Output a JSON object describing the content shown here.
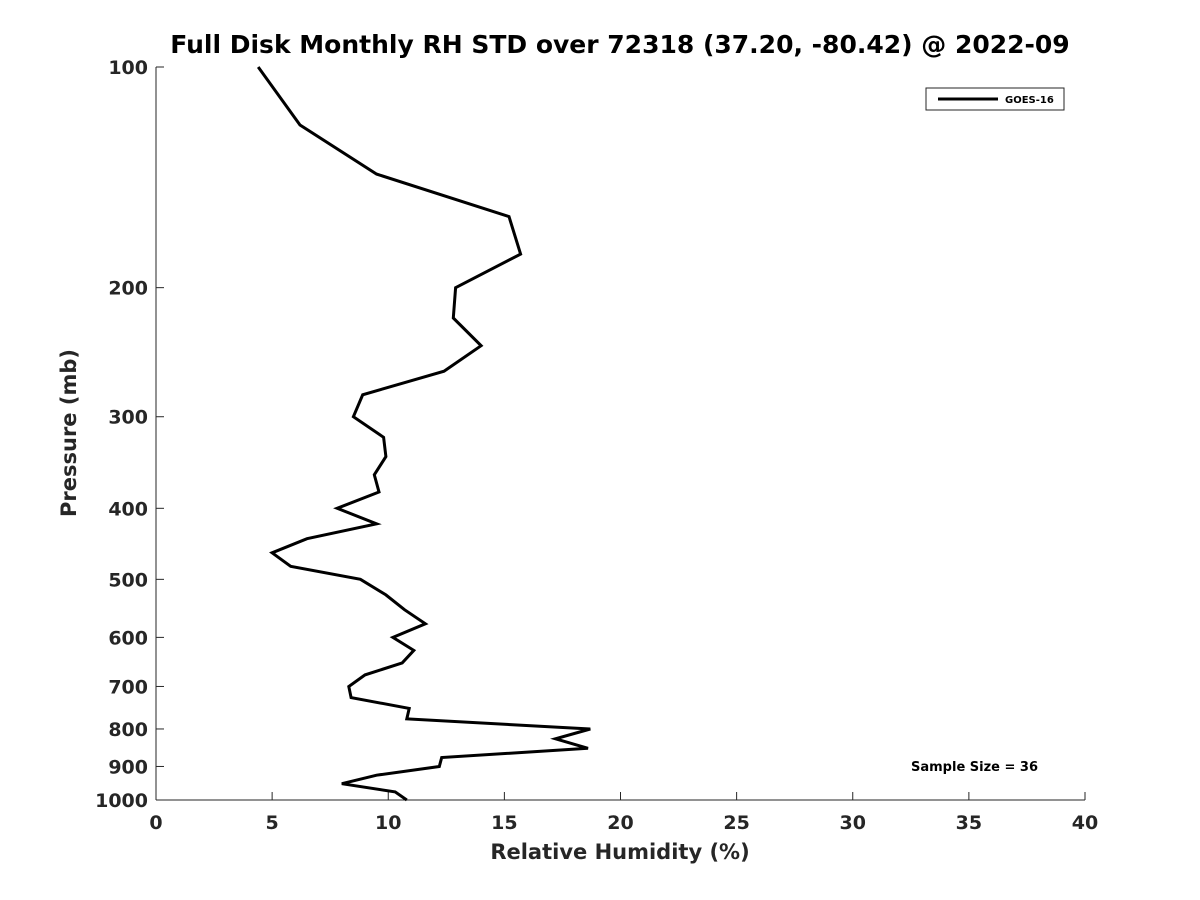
{
  "chart_data": {
    "type": "line",
    "title": "Full Disk Monthly RH STD over 72318 (37.20, -80.42) @ 2022-09",
    "xlabel": "Relative Humidity (%)",
    "ylabel": "Pressure (mb)",
    "xlim": [
      0,
      40
    ],
    "ylim": [
      100,
      1000
    ],
    "y_scale": "log",
    "y_reversed": true,
    "x_ticks": [
      0,
      5,
      10,
      15,
      20,
      25,
      30,
      35,
      40
    ],
    "y_ticks": [
      100,
      200,
      300,
      400,
      500,
      600,
      700,
      800,
      900,
      1000
    ],
    "grid": false,
    "legend_position": "top-right",
    "series": [
      {
        "name": "GOES-16",
        "color": "#000000",
        "x": [
          4.4,
          6.2,
          9.5,
          15.2,
          15.7,
          12.9,
          12.8,
          14.0,
          12.4,
          8.9,
          8.5,
          9.8,
          9.9,
          9.4,
          9.6,
          7.8,
          9.5,
          6.5,
          5.0,
          5.8,
          8.8,
          9.9,
          10.7,
          11.6,
          10.2,
          11.1,
          10.6,
          9.0,
          8.3,
          8.4,
          10.9,
          10.8,
          18.7,
          17.2,
          18.6,
          12.3,
          12.2,
          9.5,
          8.0,
          10.3,
          10.8
        ],
        "y": [
          100,
          120,
          140,
          160,
          180,
          200,
          220,
          240,
          260,
          280,
          300,
          320,
          340,
          360,
          380,
          400,
          420,
          440,
          460,
          480,
          500,
          525,
          550,
          575,
          600,
          625,
          650,
          675,
          700,
          725,
          750,
          775,
          800,
          825,
          850,
          875,
          900,
          925,
          950,
          975,
          1000
        ]
      }
    ],
    "annotations": [
      {
        "text": "Sample Size = 36"
      }
    ]
  }
}
